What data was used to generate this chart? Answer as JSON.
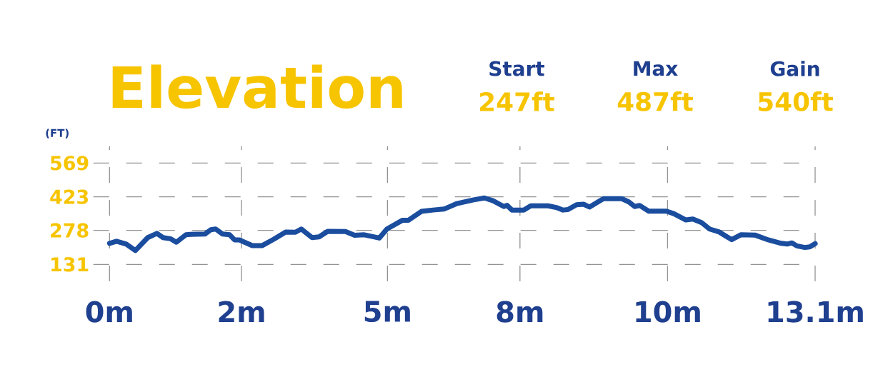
{
  "chart_data": {
    "type": "line",
    "title": "Elevation",
    "ylabel": "(FT)",
    "annotations": [
      "Start",
      "247ft",
      "Max",
      "487ft",
      "Gain",
      "540ft"
    ],
    "series": [
      {
        "color": "#1b4d9e",
        "x": [
          0,
          0.13,
          0.31,
          0.48,
          0.71,
          0.88,
          0.99,
          1.13,
          1.24,
          1.42,
          1.5,
          1.77,
          1.88,
          1.97,
          2.1,
          2.23,
          2.32,
          2.41,
          2.65,
          2.83,
          3.05,
          3.27,
          3.45,
          3.56,
          3.76,
          3.89,
          4.05,
          4.38,
          4.55,
          4.73,
          5.01,
          5.15,
          5.44,
          5.55,
          5.79,
          6.01,
          6.21,
          6.45,
          6.76,
          6.96,
          7.12,
          7.32,
          7.38,
          7.47,
          7.69,
          7.82,
          8.14,
          8.31,
          8.42,
          8.51,
          8.67,
          8.8,
          8.91,
          9.02,
          9.17,
          9.51,
          9.64,
          9.75,
          9.84,
          10.01,
          10.34,
          10.48,
          10.7,
          10.83,
          10.99,
          11.14,
          11.32,
          11.55,
          11.72,
          11.98,
          12.23,
          12.47,
          12.58,
          12.67,
          12.76,
          12.91,
          13.0,
          13.1
        ],
        "values": [
          222,
          231,
          219,
          191,
          247,
          265,
          247,
          242,
          227,
          259,
          261,
          262,
          281,
          284,
          262,
          259,
          237,
          237,
          212,
          212,
          240,
          271,
          270,
          284,
          247,
          250,
          274,
          273,
          257,
          259,
          245,
          284,
          322,
          322,
          360,
          366,
          370,
          394,
          410,
          418,
          406,
          381,
          386,
          366,
          366,
          384,
          384,
          376,
          366,
          368,
          389,
          391,
          379,
          394,
          415,
          415,
          401,
          381,
          386,
          361,
          361,
          350,
          323,
          327,
          312,
          284,
          271,
          238,
          259,
          258,
          237,
          222,
          219,
          224,
          211,
          204,
          207,
          221
        ]
      }
    ],
    "xlim": [
      -0.3,
      13.1
    ],
    "ylim": [
      58,
      641
    ],
    "xticks": [
      {
        "value": 0,
        "label": "0m"
      },
      {
        "value": 2.45,
        "label": "2m"
      },
      {
        "value": 5.16,
        "label": "5m"
      },
      {
        "value": 7.62,
        "label": "8m"
      },
      {
        "value": 10.36,
        "label": "10m"
      },
      {
        "value": 13.1,
        "label": "13.1m"
      }
    ],
    "yticks": [
      131,
      278,
      423,
      569
    ],
    "grid": true,
    "line_style": "solid",
    "marker": "none"
  }
}
